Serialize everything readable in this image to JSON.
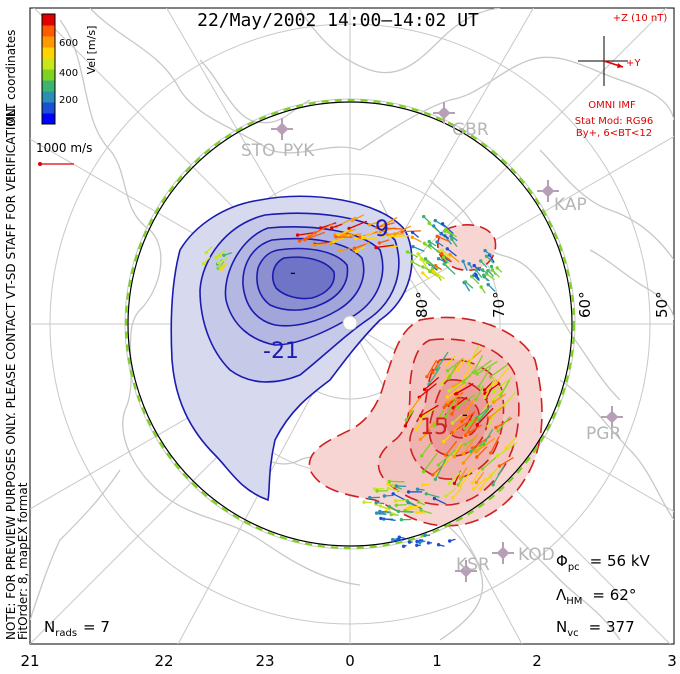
{
  "title": "22/May/2002 14:00–14:02 UT",
  "legend": {
    "coordinate_system": "MLT coordinates",
    "velocity_label": "Vel [m/s]",
    "ticks": [
      "600",
      "400",
      "200"
    ],
    "colors": [
      "#0000ff",
      "#1a4fd6",
      "#2b8fb5",
      "#3cb371",
      "#7ed321",
      "#c9e61b",
      "#ffd400",
      "#ff9900",
      "#ff5a00",
      "#e00000"
    ],
    "scale_vector_label": "1000 m/s"
  },
  "imf": {
    "axis_label": "+Z (10 nT)",
    "y_label": "+Y",
    "source": "OMNI IMF",
    "model": "Stat Mod: RG96",
    "condition": "By+, 6<BT<12"
  },
  "preview_note_line1": "NOTE: FOR PREVIEW PURPOSES ONLY. PLEASE CONTACT VT-SD STAFF FOR VERIFICATION.",
  "preview_note_line2": "FitOrder: 8, mapEX format",
  "stations": [
    "STO",
    "PYK",
    "GBR",
    "KAP",
    "PGR",
    "KOD",
    "KSR"
  ],
  "latitude_labels": [
    "80°",
    "70°",
    "60°",
    "50°"
  ],
  "contour_labels": [
    "9",
    "-21",
    "15",
    "-",
    "-"
  ],
  "mlt_labels": [
    "21",
    "22",
    "23",
    "0",
    "1",
    "2",
    "3"
  ],
  "stats": {
    "nrads": {
      "label": "N",
      "sub": "rads",
      "value": "= 7"
    },
    "phi_pc": {
      "label": "Φ",
      "sub": "pc",
      "value": "= 56 kV"
    },
    "lambda_hm": {
      "label": "Λ",
      "sub": "HM",
      "value": "= 62°"
    },
    "nvc": {
      "label": "N",
      "sub": "vc",
      "value": "= 377"
    }
  }
}
